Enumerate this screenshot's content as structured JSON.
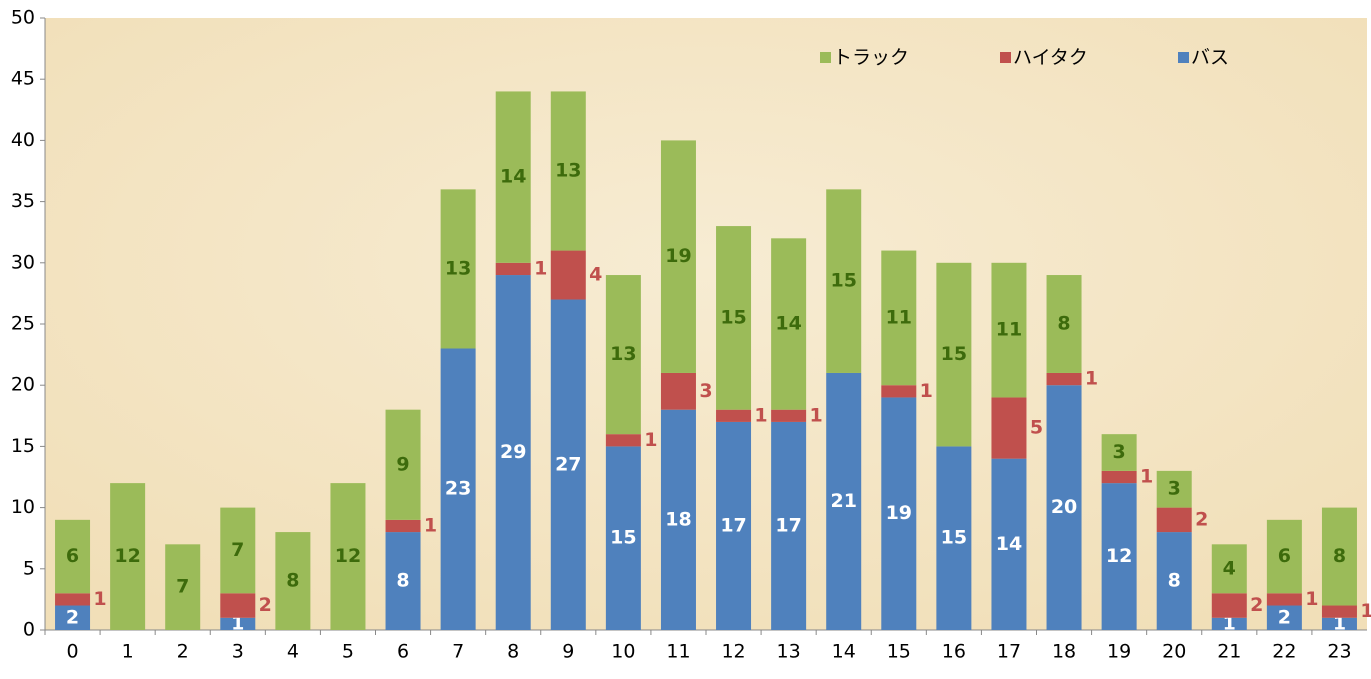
{
  "chart_data": {
    "type": "stacked_bar",
    "categories": [
      "0",
      "1",
      "2",
      "3",
      "4",
      "5",
      "6",
      "7",
      "8",
      "9",
      "10",
      "11",
      "12",
      "13",
      "14",
      "15",
      "16",
      "17",
      "18",
      "19",
      "20",
      "21",
      "22",
      "23"
    ],
    "series": [
      {
        "name": "バス",
        "color": "#4f81bd",
        "label_color": "#ffffff",
        "values": [
          2,
          0,
          0,
          1,
          0,
          0,
          8,
          23,
          29,
          27,
          15,
          18,
          17,
          17,
          21,
          19,
          15,
          14,
          20,
          12,
          8,
          1,
          2,
          1
        ]
      },
      {
        "name": "ハイタク",
        "color": "#c0504d",
        "label_color": "#c0504d",
        "values": [
          1,
          0,
          0,
          2,
          0,
          0,
          1,
          0,
          1,
          4,
          1,
          3,
          1,
          1,
          0,
          1,
          0,
          5,
          1,
          1,
          2,
          2,
          1,
          1
        ]
      },
      {
        "name": "トラック",
        "color": "#9bbb59",
        "label_color": "#3d6b0c",
        "values": [
          6,
          12,
          7,
          7,
          8,
          12,
          9,
          13,
          14,
          13,
          13,
          19,
          15,
          14,
          15,
          11,
          15,
          11,
          8,
          3,
          3,
          4,
          6,
          8
        ]
      }
    ],
    "ylim": [
      0,
      50
    ],
    "yticks": [
      0,
      5,
      10,
      15,
      20,
      25,
      30,
      35,
      40,
      45,
      50
    ],
    "legend": "top-right"
  }
}
